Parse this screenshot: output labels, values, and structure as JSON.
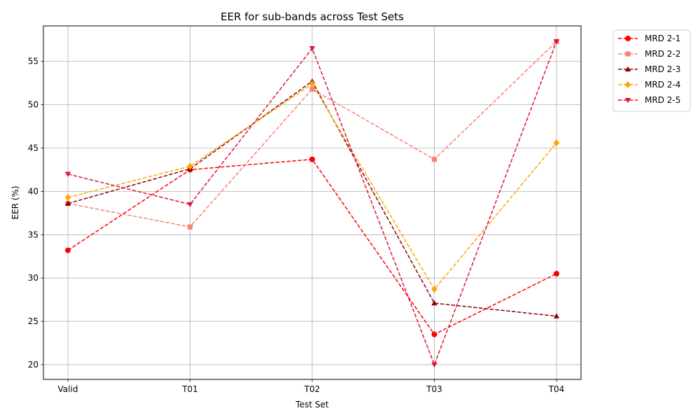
{
  "chart_data": {
    "type": "line",
    "title": "EER for sub-bands across Test Sets",
    "xlabel": "Test Set",
    "ylabel": "EER (%)",
    "categories": [
      "Valid",
      "T01",
      "T02",
      "T03",
      "T04"
    ],
    "yticks": [
      20,
      25,
      30,
      35,
      40,
      45,
      50,
      55
    ],
    "ylim": [
      18.3,
      59.1
    ],
    "grid": true,
    "legend_position": "outside-top-right",
    "series": [
      {
        "name": "MRD 2-1",
        "color": "#ff0000",
        "marker": "circle",
        "values": [
          33.2,
          42.5,
          43.7,
          23.5,
          30.5
        ]
      },
      {
        "name": "MRD 2-2",
        "color": "#fa8072",
        "marker": "square",
        "values": [
          38.6,
          35.9,
          51.8,
          43.7,
          57.3
        ]
      },
      {
        "name": "MRD 2-3",
        "color": "#8b0000",
        "marker": "triangle-up",
        "values": [
          38.6,
          42.6,
          52.7,
          27.1,
          25.6
        ]
      },
      {
        "name": "MRD 2-4",
        "color": "#ffa500",
        "marker": "diamond",
        "values": [
          39.3,
          42.9,
          52.4,
          28.7,
          45.6
        ]
      },
      {
        "name": "MRD 2-5",
        "color": "#dc143c",
        "marker": "triangle-down",
        "values": [
          42.0,
          38.5,
          56.5,
          20.0,
          57.3
        ]
      }
    ]
  }
}
